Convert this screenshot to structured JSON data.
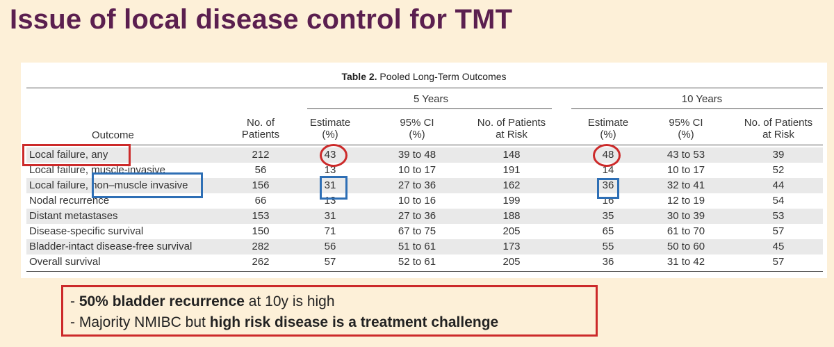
{
  "title": "Issue of local disease control for TMT",
  "table": {
    "caption_bold": "Table 2.",
    "caption_text": " Pooled Long-Term Outcomes",
    "group_5y": "5 Years",
    "group_10y": "10 Years",
    "col_outcome": "Outcome",
    "col_patients_1": "No. of",
    "col_patients_2": "Patients",
    "col_estimate_1": "Estimate",
    "col_estimate_2": "(%)",
    "col_ci_1": "95% CI",
    "col_ci_2": "(%)",
    "col_risk_1": "No. of Patients",
    "col_risk_2": "at Risk",
    "rows": [
      {
        "outcome": "Local failure, any",
        "patients": "212",
        "e5": "43",
        "ci5": "39 to 48",
        "r5": "148",
        "e10": "48",
        "ci10": "43 to 53",
        "r10": "39"
      },
      {
        "outcome": "Local failure, muscle-invasive",
        "patients": "56",
        "e5": "13",
        "ci5": "10 to 17",
        "r5": "191",
        "e10": "14",
        "ci10": "10 to 17",
        "r10": "52"
      },
      {
        "outcome": "Local failure, non–muscle invasive",
        "patients": "156",
        "e5": "31",
        "ci5": "27 to 36",
        "r5": "162",
        "e10": "36",
        "ci10": "32 to 41",
        "r10": "44"
      },
      {
        "outcome": "Nodal recurrence",
        "patients": "66",
        "e5": "13",
        "ci5": "10 to 16",
        "r5": "199",
        "e10": "16",
        "ci10": "12 to 19",
        "r10": "54"
      },
      {
        "outcome": "Distant metastases",
        "patients": "153",
        "e5": "31",
        "ci5": "27 to 36",
        "r5": "188",
        "e10": "35",
        "ci10": "30 to 39",
        "r10": "53"
      },
      {
        "outcome": "Disease-specific survival",
        "patients": "150",
        "e5": "71",
        "ci5": "67 to 75",
        "r5": "205",
        "e10": "65",
        "ci10": "61 to 70",
        "r10": "57"
      },
      {
        "outcome": "Bladder-intact disease-free survival",
        "patients": "282",
        "e5": "56",
        "ci5": "51 to 61",
        "r5": "173",
        "e10": "55",
        "ci10": "50 to 60",
        "r10": "45"
      },
      {
        "outcome": "Overall survival",
        "patients": "262",
        "e5": "57",
        "ci5": "52 to 61",
        "r5": "205",
        "e10": "36",
        "ci10": "31 to 42",
        "r10": "57"
      }
    ]
  },
  "notes": {
    "line1_prefix": "- ",
    "line1_bold": "50% bladder recurrence",
    "line1_rest": " at 10y is high",
    "line2_prefix": "- Majority NMIBC but ",
    "line2_bold": "high risk disease is a treatment challenge"
  },
  "colors": {
    "title": "#5b1f4f",
    "background": "#fdf0d8",
    "highlight_red": "#cc2a2a",
    "highlight_blue": "#2e6fb5"
  }
}
